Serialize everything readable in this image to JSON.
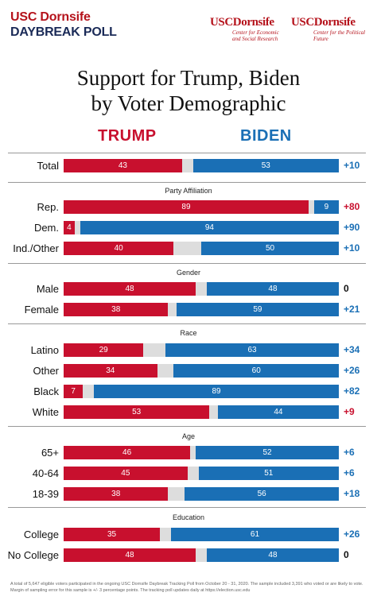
{
  "header": {
    "brand_line1": "USC Dornsife",
    "brand_line2": "DAYBREAK POLL",
    "logo1_name": "USCDornsife",
    "logo1_sub": "Center for Economic and Social Research",
    "logo2_name": "USCDornsife",
    "logo2_sub": "Center for the Political Future"
  },
  "colors": {
    "trump": "#c8102e",
    "biden": "#1a6fb5",
    "neutral": "#dddddd",
    "positive_margin": "#1a6fb5",
    "negative_margin": "#c8102e"
  },
  "chart_data": {
    "type": "bar",
    "title_line1": "Support for Trump, Biden",
    "title_line2": "by Voter Demographic",
    "series_names": [
      "TRUMP",
      "BIDEN"
    ],
    "sections": [
      "Party Affiliation",
      "Gender",
      "Race",
      "Age",
      "Education"
    ],
    "rows": [
      {
        "label": "Total",
        "trump": 43,
        "biden": 53,
        "margin": "+10"
      },
      {
        "label": "Rep.",
        "trump": 89,
        "biden": 9,
        "margin": "+80"
      },
      {
        "label": "Dem.",
        "trump": 4,
        "biden": 94,
        "margin": "+90"
      },
      {
        "label": "Ind./Other",
        "trump": 40,
        "biden": 50,
        "margin": "+10"
      },
      {
        "label": "Male",
        "trump": 48,
        "biden": 48,
        "margin": "0"
      },
      {
        "label": "Female",
        "trump": 38,
        "biden": 59,
        "margin": "+21"
      },
      {
        "label": "Latino",
        "trump": 29,
        "biden": 63,
        "margin": "+34"
      },
      {
        "label": "Other",
        "trump": 34,
        "biden": 60,
        "margin": "+26"
      },
      {
        "label": "Black",
        "trump": 7,
        "biden": 89,
        "margin": "+82"
      },
      {
        "label": "White",
        "trump": 53,
        "biden": 44,
        "margin": "+9"
      },
      {
        "label": "65+",
        "trump": 46,
        "biden": 52,
        "margin": "+6"
      },
      {
        "label": "40-64",
        "trump": 45,
        "biden": 51,
        "margin": "+6"
      },
      {
        "label": "18-39",
        "trump": 38,
        "biden": 56,
        "margin": "+18"
      },
      {
        "label": "College",
        "trump": 35,
        "biden": 61,
        "margin": "+26"
      },
      {
        "label": "No College",
        "trump": 48,
        "biden": 48,
        "margin": "0"
      }
    ]
  },
  "footnote": "A total of 5,647 eligible voters participated in the ongoing USC Dornsife Daybreak Tracking Poll from October 20 - 31, 2020. The sample included 3,391 who voted or are likely to vote. Margin of sampling error for this sample is +/- 3 percentage points. The tracking poll updates daily at https://election.usc.edu"
}
